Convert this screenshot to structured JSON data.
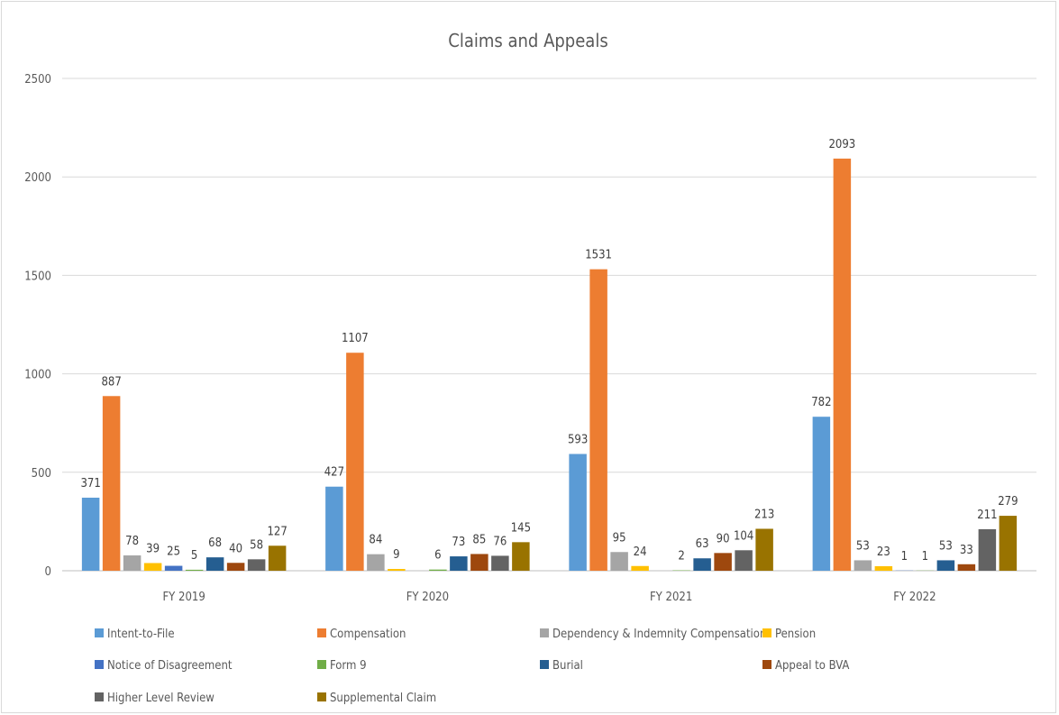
{
  "chart_data": {
    "type": "bar",
    "title": "Claims and Appeals",
    "xlabel": "",
    "ylabel": "",
    "ylim": [
      0,
      2500
    ],
    "yticks": [
      0,
      500,
      1000,
      1500,
      2000,
      2500
    ],
    "grid": true,
    "legend_position": "bottom",
    "categories": [
      "FY 2019",
      "FY 2020",
      "FY 2021",
      "FY 2022"
    ],
    "series": [
      {
        "name": "Intent-to-File",
        "color": "#5b9bd5",
        "values": [
          371,
          427,
          593,
          782
        ]
      },
      {
        "name": "Compensation",
        "color": "#ed7d31",
        "values": [
          887,
          1107,
          1531,
          2093
        ]
      },
      {
        "name": "Dependency & Indemnity Compensation",
        "color": "#a5a5a5",
        "values": [
          78,
          84,
          95,
          53
        ]
      },
      {
        "name": "Pension",
        "color": "#ffc000",
        "values": [
          39,
          9,
          24,
          23
        ]
      },
      {
        "name": "Notice of Disagreement",
        "color": "#4472c4",
        "values": [
          25,
          null,
          null,
          1
        ]
      },
      {
        "name": "Form 9",
        "color": "#70ad47",
        "values": [
          5,
          6,
          2,
          1
        ]
      },
      {
        "name": "Burial",
        "color": "#255e91",
        "values": [
          68,
          73,
          63,
          53
        ]
      },
      {
        "name": "Appeal to BVA",
        "color": "#9e480e",
        "values": [
          40,
          85,
          90,
          33
        ]
      },
      {
        "name": "Higher Level Review",
        "color": "#636363",
        "values": [
          58,
          76,
          104,
          211
        ]
      },
      {
        "name": "Supplemental Claim",
        "color": "#997300",
        "values": [
          127,
          145,
          213,
          279
        ]
      }
    ]
  }
}
